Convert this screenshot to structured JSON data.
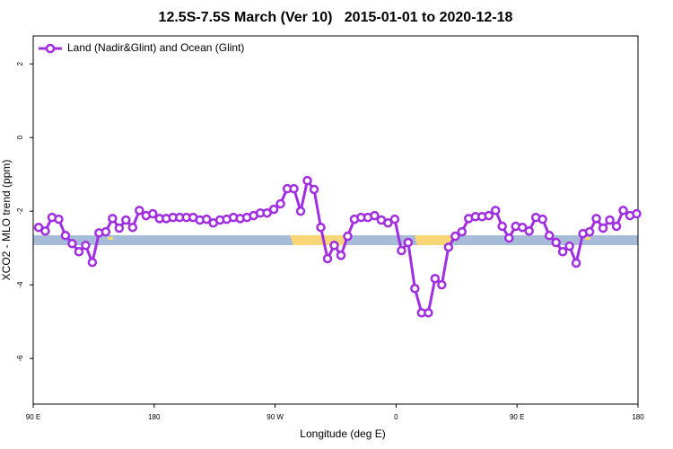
{
  "chart_data": {
    "type": "line",
    "title": "12.5S-7.5S March (Ver 10)   2015-01-01 to 2020-12-18",
    "xlabel": "Longitude (deg E)",
    "ylabel": "XCO2 - MLO trend (ppm)",
    "xlim": [
      90,
      540
    ],
    "ylim": [
      -7.24,
      2.76
    ],
    "xticks": [
      {
        "value": 90,
        "label": "90 E"
      },
      180,
      {
        "value": 270,
        "label": "90 W"
      },
      {
        "value": 360,
        "label": "0"
      },
      {
        "value": 450,
        "label": "90 E"
      },
      {
        "value": 540,
        "label": "180"
      }
    ],
    "yticks": [
      2,
      0,
      -2,
      -4,
      -6
    ],
    "legend": "top-left",
    "x": [
      94,
      99,
      104,
      109,
      114,
      119,
      124,
      129,
      134,
      139,
      144,
      149,
      154,
      159,
      164,
      169,
      174,
      179,
      184,
      189,
      194,
      199,
      204,
      209,
      214,
      219,
      224,
      229,
      234,
      239,
      244,
      249,
      254,
      259,
      264,
      269,
      274,
      279,
      284,
      289,
      294,
      299,
      304,
      309,
      314,
      319,
      324,
      329,
      334,
      339,
      344,
      349,
      354,
      359,
      364,
      369,
      374,
      379,
      384,
      389,
      394,
      399,
      404,
      409,
      414,
      419,
      424,
      429,
      434,
      439,
      444,
      449,
      454,
      459,
      464,
      469,
      474,
      479,
      484,
      489,
      494,
      499,
      504,
      509,
      514,
      519,
      524,
      529,
      534,
      539
    ],
    "series": [
      {
        "name": "Land (Nadir&Glint) and Ocean (Glint)",
        "color": "#a12ee0",
        "values": [
          -2.44,
          -2.54,
          -2.17,
          -2.22,
          -2.66,
          -2.88,
          -3.1,
          -2.93,
          -3.39,
          -2.59,
          -2.56,
          -2.2,
          -2.46,
          -2.24,
          -2.44,
          -1.98,
          -2.12,
          -2.07,
          -2.2,
          -2.2,
          -2.17,
          -2.17,
          -2.17,
          -2.17,
          -2.24,
          -2.22,
          -2.32,
          -2.24,
          -2.22,
          -2.17,
          -2.2,
          -2.17,
          -2.12,
          -2.05,
          -2.05,
          -1.95,
          -1.8,
          -1.39,
          -1.39,
          -2.0,
          -1.17,
          -1.41,
          -2.44,
          -3.29,
          -2.93,
          -3.2,
          -2.68,
          -2.22,
          -2.17,
          -2.17,
          -2.12,
          -2.24,
          -2.32,
          -2.22,
          -3.07,
          -2.85,
          -4.1,
          -4.76,
          -4.76,
          -3.83,
          -4.0,
          -2.98,
          -2.68,
          -2.56,
          -2.2,
          -2.15,
          -2.15,
          -2.12,
          -1.98,
          -2.41,
          -2.73,
          -2.41,
          -2.44,
          -2.54,
          -2.17,
          -2.22,
          -2.66,
          -2.85,
          -3.1,
          -2.95,
          -3.41,
          -2.61,
          -2.56,
          -2.2,
          -2.46,
          -2.24,
          -2.41,
          -1.98,
          -2.12,
          -2.07
        ]
      }
    ]
  }
}
